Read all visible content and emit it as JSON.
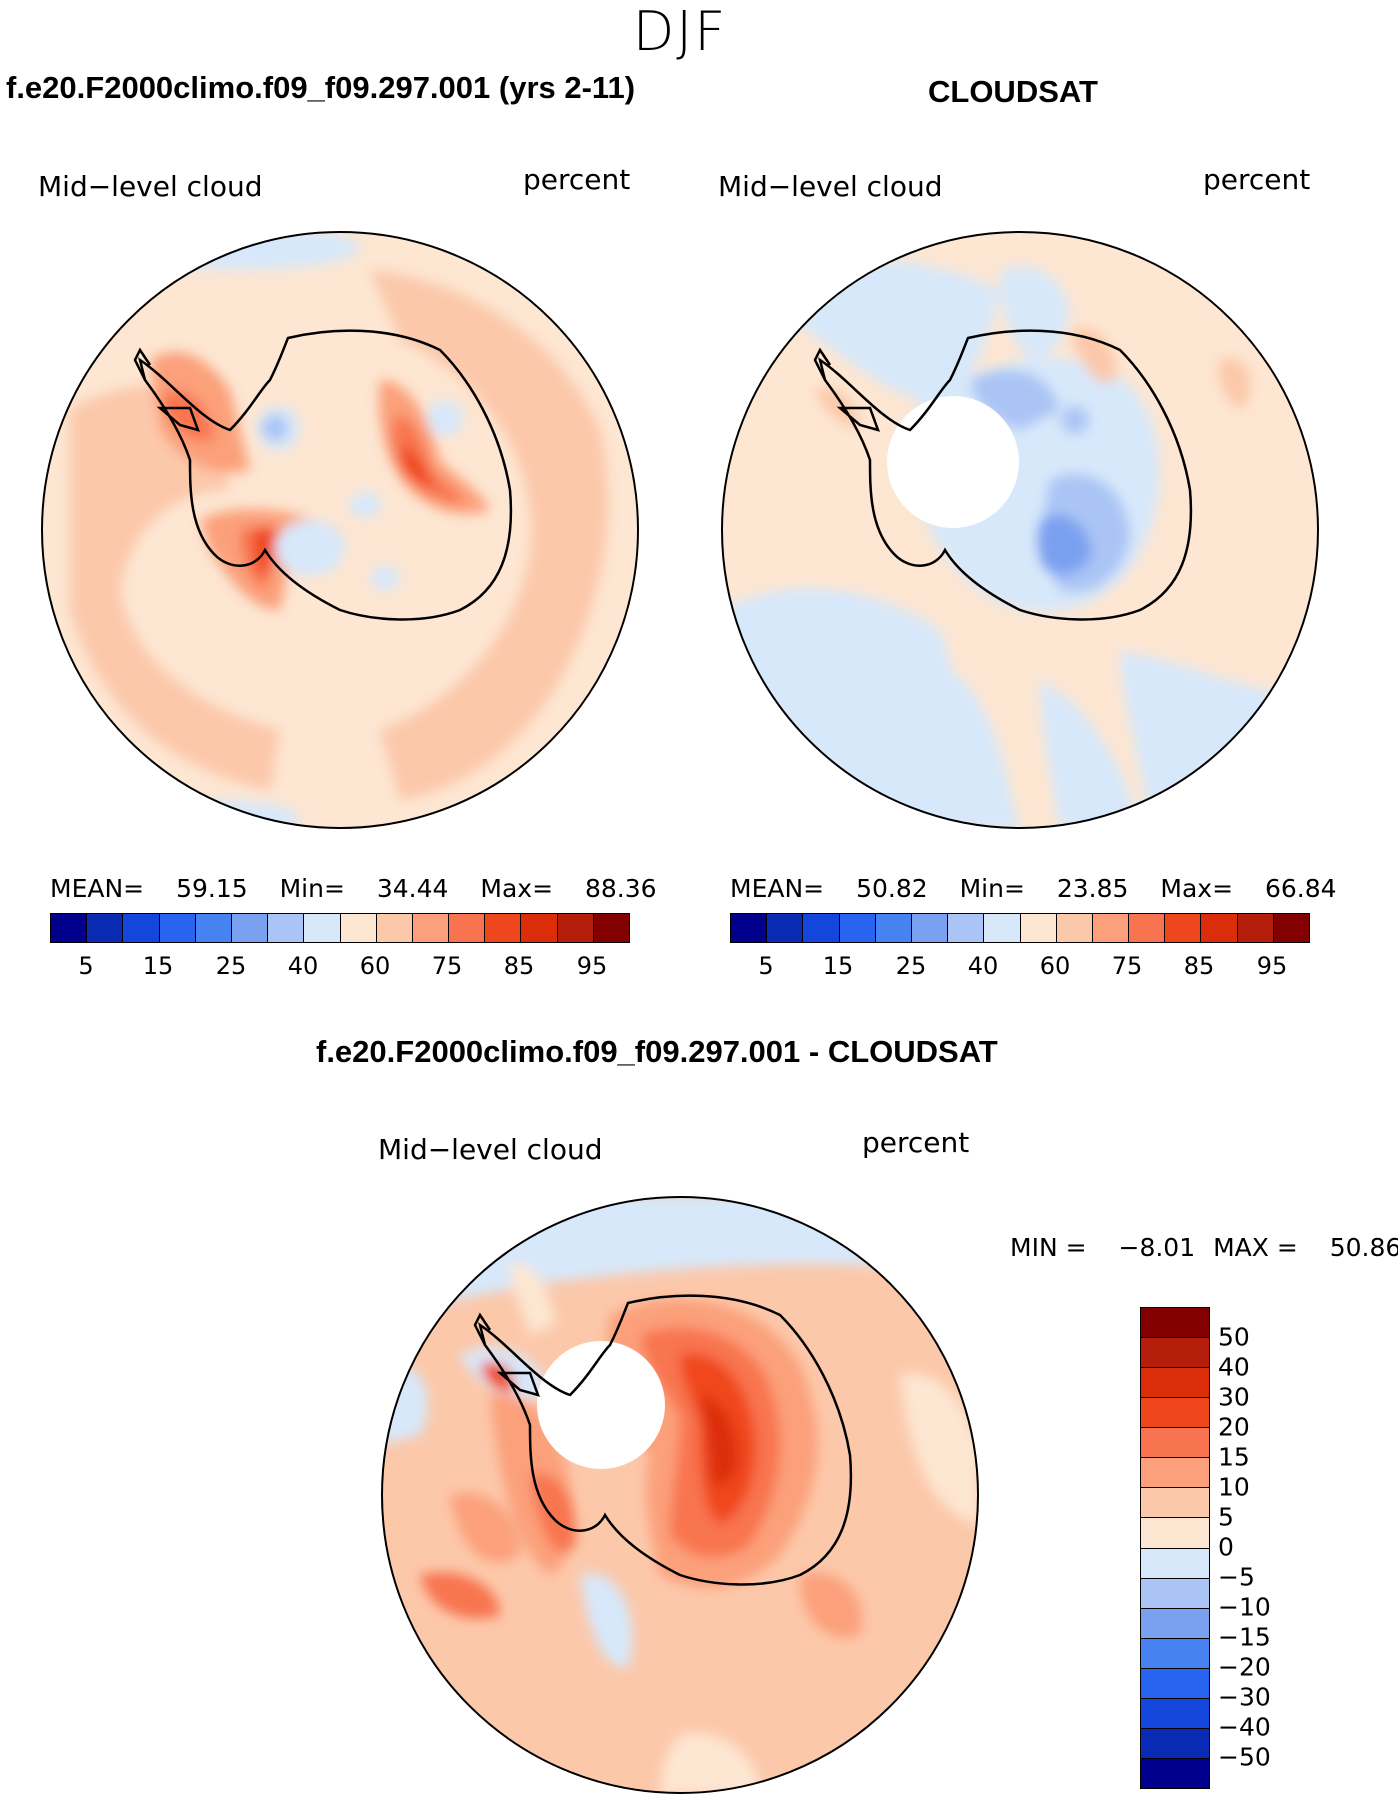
{
  "season": "DJF",
  "panels": {
    "model": {
      "title": "f.e20.F2000climo.f09_f09.297.001 (yrs 2-11)",
      "variable": "Mid−level cloud",
      "units": "percent",
      "stats": {
        "mean_label": "MEAN=",
        "mean": "59.15",
        "min_label": "Min=",
        "min": "34.44",
        "max_label": "Max=",
        "max": "88.36"
      }
    },
    "obs": {
      "title": "CLOUDSAT",
      "variable": "Mid−level cloud",
      "units": "percent",
      "stats": {
        "mean_label": "MEAN=",
        "mean": "50.82",
        "min_label": "Min=",
        "min": "23.85",
        "max_label": "Max=",
        "max": "66.84"
      }
    },
    "diff": {
      "title": "f.e20.F2000climo.f09_f09.297.001 - CLOUDSAT",
      "variable": "Mid−level cloud",
      "units": "percent",
      "stats": {
        "min_label": "MIN =",
        "min": "−8.01",
        "max_label": "MAX =",
        "max": "50.86"
      }
    }
  },
  "abs_colorbar": {
    "colors": [
      "#00008c",
      "#0a2ab4",
      "#1446dc",
      "#2864f0",
      "#4682f0",
      "#7aa0f0",
      "#aac4f5",
      "#d7e8fa",
      "#fde6d2",
      "#fcc8aa",
      "#fba07a",
      "#f87450",
      "#f0461e",
      "#dc2d0a",
      "#b41e0a",
      "#820000"
    ],
    "tick_labels": [
      "5",
      "15",
      "25",
      "40",
      "60",
      "75",
      "85",
      "95"
    ]
  },
  "diff_colorbar": {
    "colors": [
      "#820000",
      "#b41e0a",
      "#dc2d0a",
      "#f0461e",
      "#f87450",
      "#fba07a",
      "#fcc8aa",
      "#fde6d2",
      "#d7e8fa",
      "#aac4f5",
      "#7aa0f0",
      "#4682f0",
      "#2864f0",
      "#1446dc",
      "#0a2ab4",
      "#00008c"
    ],
    "tick_labels": [
      "50",
      "40",
      "30",
      "20",
      "15",
      "10",
      "5",
      "0",
      "−5",
      "−10",
      "−15",
      "−20",
      "−30",
      "−40",
      "−50"
    ]
  }
}
